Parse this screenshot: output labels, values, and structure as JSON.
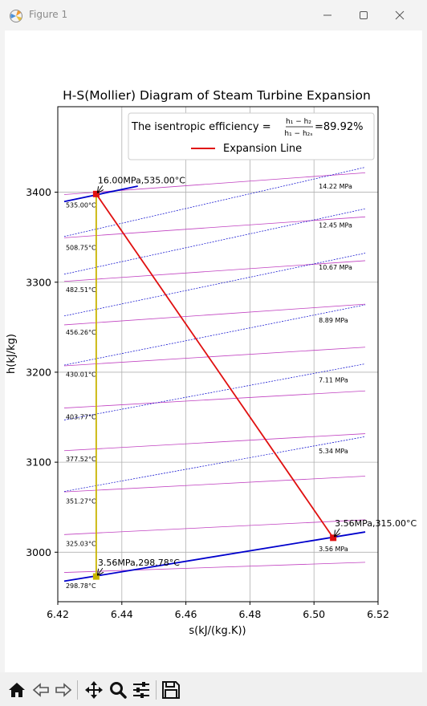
{
  "window": {
    "title": "Figure 1",
    "controls": {
      "minimize": "minimize",
      "maximize": "maximize",
      "close": "close"
    }
  },
  "toolbar": {
    "buttons": [
      {
        "name": "home-button",
        "icon": "home-icon"
      },
      {
        "name": "back-button",
        "icon": "back-arrow-icon"
      },
      {
        "name": "forward-button",
        "icon": "forward-arrow-icon"
      },
      {
        "name": "pan-button",
        "icon": "move-icon"
      },
      {
        "name": "zoom-button",
        "icon": "zoom-icon"
      },
      {
        "name": "configure-subplots-button",
        "icon": "sliders-icon"
      },
      {
        "name": "save-button",
        "icon": "save-icon"
      }
    ]
  },
  "chart_data": {
    "type": "line",
    "title": "H-S(Mollier) Diagram of Steam Turbine Expansion",
    "xlabel": "s(kJ/(kg.K))",
    "ylabel": "h(kJ/kg)",
    "xlim": [
      6.42,
      6.52
    ],
    "ylim": [
      2945,
      3495
    ],
    "xticks": [
      6.42,
      6.44,
      6.46,
      6.48,
      6.5,
      6.52
    ],
    "xtick_labels": [
      "6.42",
      "6.44",
      "6.46",
      "6.48",
      "6.50",
      "6.52"
    ],
    "yticks": [
      3000,
      3100,
      3200,
      3300,
      3400
    ],
    "ytick_labels": [
      "3000",
      "3100",
      "3200",
      "3300",
      "3400"
    ],
    "grid": true,
    "legend": {
      "placement": "top-right",
      "efficiency_prefix": "The isentropic efficiency = ",
      "frac_numerator": "h₁ − h₂",
      "frac_denominator": "h₁ − h₂ₛ",
      "efficiency_value": "=89.92%",
      "entries": [
        {
          "label": "Expansion Line",
          "color": "#e01010"
        }
      ]
    },
    "colors": {
      "isobar": "#0000cc",
      "isotherm": "#c040c0",
      "expansion": "#e01010",
      "isentropic": "#c8b400",
      "state_marker": "#e01010",
      "isentropic_marker": "#c8b400"
    },
    "isobars_main": [
      {
        "x": [
          6.422,
          6.445
        ],
        "y": [
          3389.6,
          3406.8
        ]
      },
      {
        "x": [
          6.422,
          6.516
        ],
        "y": [
          2967.8,
          3022.5
        ]
      }
    ],
    "isobars_dashed": [
      {
        "x": [
          6.422,
          6.516
        ],
        "y": [
          3146.9,
          3209.3
        ]
      },
      {
        "x": [
          6.422,
          6.516
        ],
        "y": [
          3067.5,
          3128.4
        ]
      },
      {
        "x": [
          6.422,
          6.516
        ],
        "y": [
          3207.9,
          3274.9
        ]
      },
      {
        "x": [
          6.422,
          6.516
        ],
        "y": [
          3262.5,
          3332.3
        ]
      },
      {
        "x": [
          6.422,
          6.516
        ],
        "y": [
          3308.9,
          3381.6
        ]
      },
      {
        "x": [
          6.422,
          6.516
        ],
        "y": [
          3350.8,
          3427.7
        ]
      }
    ],
    "isotherms": [
      {
        "x": [
          6.422,
          6.516
        ],
        "y": [
          2977.5,
          2988.8
        ]
      },
      {
        "x": [
          6.422,
          6.516
        ],
        "y": [
          3019.6,
          3036.0
        ]
      },
      {
        "x": [
          6.422,
          6.516
        ],
        "y": [
          3067.0,
          3084.5
        ]
      },
      {
        "x": [
          6.422,
          6.516
        ],
        "y": [
          3112.8,
          3131.7
        ]
      },
      {
        "x": [
          6.422,
          6.516
        ],
        "y": [
          3160.2,
          3179.2
        ]
      },
      {
        "x": [
          6.422,
          6.516
        ],
        "y": [
          3207.1,
          3227.8
        ]
      },
      {
        "x": [
          6.422,
          6.516
        ],
        "y": [
          3252.6,
          3275.6
        ]
      },
      {
        "x": [
          6.422,
          6.516
        ],
        "y": [
          3300.9,
          3323.9
        ]
      },
      {
        "x": [
          6.422,
          6.516
        ],
        "y": [
          3349.4,
          3372.6
        ]
      },
      {
        "x": [
          6.422,
          6.516
        ],
        "y": [
          3397.4,
          3421.6
        ]
      }
    ],
    "isotherm_labels": [
      {
        "text": "535.00°C",
        "x": 6.4225,
        "y": 3383
      },
      {
        "text": "508.75°C",
        "x": 6.4225,
        "y": 3336
      },
      {
        "text": "482.51°C",
        "x": 6.4225,
        "y": 3289
      },
      {
        "text": "456.26°C",
        "x": 6.4225,
        "y": 3242
      },
      {
        "text": "430.01°C",
        "x": 6.4225,
        "y": 3195
      },
      {
        "text": "403.77°C",
        "x": 6.4225,
        "y": 3148
      },
      {
        "text": "377.52°C",
        "x": 6.4225,
        "y": 3101
      },
      {
        "text": "351.27°C",
        "x": 6.4225,
        "y": 3054
      },
      {
        "text": "325.03°C",
        "x": 6.4225,
        "y": 3007
      },
      {
        "text": "298.78°C",
        "x": 6.4225,
        "y": 2960
      }
    ],
    "pressure_labels": [
      {
        "text": "14.22 MPa",
        "x": 6.5015,
        "y": 3404
      },
      {
        "text": "12.45 MPa",
        "x": 6.5015,
        "y": 3361
      },
      {
        "text": "10.67 MPa",
        "x": 6.5015,
        "y": 3314
      },
      {
        "text": "8.89 MPa",
        "x": 6.5015,
        "y": 3255
      },
      {
        "text": "7.11 MPa",
        "x": 6.5015,
        "y": 3189
      },
      {
        "text": "5.34 MPa",
        "x": 6.5015,
        "y": 3110
      },
      {
        "text": "3.56 MPa",
        "x": 6.5015,
        "y": 3001
      }
    ],
    "expansion_line": {
      "x": [
        6.432,
        6.506
      ],
      "y": [
        3398,
        3016
      ]
    },
    "isentropic_line": {
      "x": [
        6.432,
        6.432
      ],
      "y": [
        3398,
        2973
      ]
    },
    "states": [
      {
        "label": "16.00MPa,535.00°C",
        "x": 6.432,
        "y": 3398,
        "marker": "state",
        "text_x": 6.4325,
        "text_y": 3410
      },
      {
        "label": "3.56MPa,315.00°C",
        "x": 6.506,
        "y": 3016,
        "marker": "state",
        "text_x": 6.5065,
        "text_y": 3029
      },
      {
        "label": "3.56MPa,298.78°C",
        "x": 6.432,
        "y": 2973,
        "marker": "isentropic",
        "text_x": 6.4325,
        "text_y": 2985
      }
    ]
  }
}
